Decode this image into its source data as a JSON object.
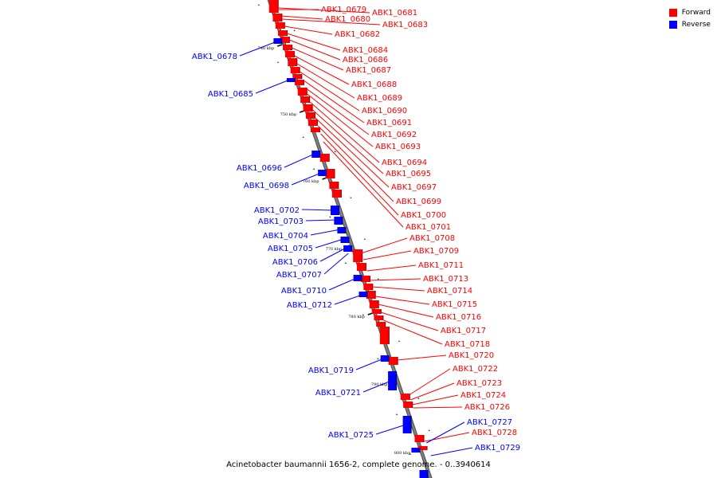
{
  "legend": {
    "forward_label": "Forward",
    "reverse_label": "Reverse",
    "forward_color": "#ff0000",
    "reverse_color": "#0000ff"
  },
  "caption": "Acinetobacter baumannii 1656-2, complete genome. - 0..3940614",
  "axis": {
    "line_color": "#808080"
  },
  "ticks": [
    "740 kbp",
    "750 kbp",
    "760 kbp",
    "770 kbp",
    "780 kbp",
    "790 kbp",
    "800 kbp"
  ],
  "forward_genes": [
    "ABK1_0679",
    "ABK1_0680",
    "ABK1_0681",
    "ABK1_0682",
    "ABK1_0683",
    "ABK1_0684",
    "ABK1_0686",
    "ABK1_0687",
    "ABK1_0688",
    "ABK1_0689",
    "ABK1_0690",
    "ABK1_0691",
    "ABK1_0692",
    "ABK1_0693",
    "ABK1_0694",
    "ABK1_0695",
    "ABK1_0697",
    "ABK1_0699",
    "ABK1_0700",
    "ABK1_0701",
    "ABK1_0708",
    "ABK1_0709",
    "ABK1_0711",
    "ABK1_0713",
    "ABK1_0714",
    "ABK1_0715",
    "ABK1_0716",
    "ABK1_0717",
    "ABK1_0718",
    "ABK1_0720",
    "ABK1_0722",
    "ABK1_0723",
    "ABK1_0724",
    "ABK1_0726",
    "ABK1_0728"
  ],
  "reverse_genes": [
    "ABK1_0678",
    "ABK1_0685",
    "ABK1_0696",
    "ABK1_0698",
    "ABK1_0702",
    "ABK1_0703",
    "ABK1_0704",
    "ABK1_0705",
    "ABK1_0706",
    "ABK1_0707",
    "ABK1_0710",
    "ABK1_0712",
    "ABK1_0719",
    "ABK1_0721",
    "ABK1_0725",
    "ABK1_0727",
    "ABK1_0729"
  ]
}
